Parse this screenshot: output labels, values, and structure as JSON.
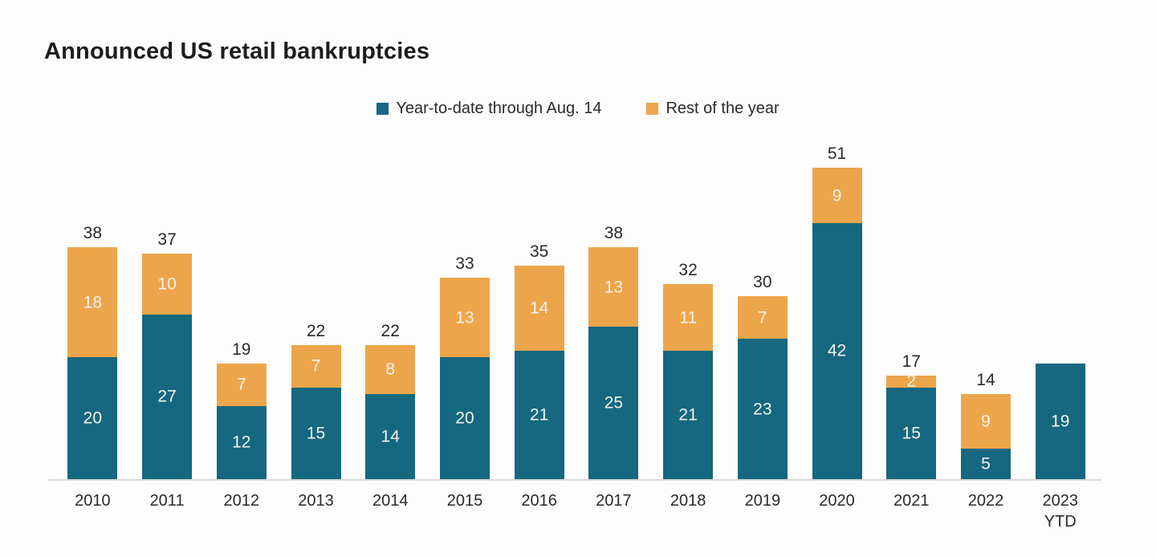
{
  "title": "Announced US retail bankruptcies",
  "legend": [
    {
      "label": "Year-to-date through Aug. 14",
      "color": "#15687f"
    },
    {
      "label": "Rest of the year",
      "color": "#eda54b"
    }
  ],
  "chart_data": {
    "type": "bar",
    "stacked": true,
    "title": "Announced US retail bankruptcies",
    "xlabel": "",
    "ylabel": "",
    "ylim": [
      0,
      55
    ],
    "grid": false,
    "legend_position": "top",
    "categories": [
      "2010",
      "2011",
      "2012",
      "2013",
      "2014",
      "2015",
      "2016",
      "2017",
      "2018",
      "2019",
      "2020",
      "2021",
      "2022",
      "2023\nYTD"
    ],
    "series": [
      {
        "name": "Year-to-date through Aug. 14",
        "color": "#15687f",
        "values": [
          20,
          27,
          12,
          15,
          14,
          20,
          21,
          25,
          21,
          23,
          42,
          15,
          5,
          19
        ]
      },
      {
        "name": "Rest of the year",
        "color": "#eda54b",
        "values": [
          18,
          10,
          7,
          7,
          8,
          13,
          14,
          13,
          11,
          7,
          9,
          2,
          9,
          0
        ]
      }
    ],
    "totals": [
      38,
      37,
      19,
      22,
      22,
      33,
      35,
      38,
      32,
      30,
      51,
      17,
      14,
      null
    ]
  }
}
